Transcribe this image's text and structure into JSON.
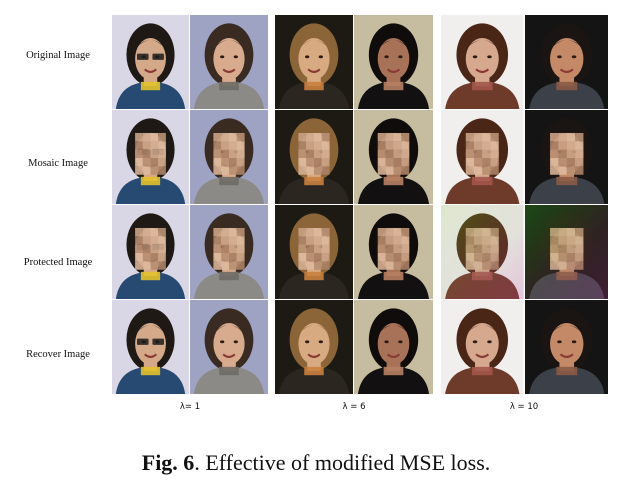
{
  "rows": [
    {
      "label": "Original Image",
      "variant": "original"
    },
    {
      "label": "Mosaic Image",
      "variant": "mosaic"
    },
    {
      "label": "Protected Image",
      "variant": "protected"
    },
    {
      "label": "Recover Image",
      "variant": "recover"
    }
  ],
  "groups": [
    {
      "lambda_label": "λ= 1",
      "faces": [
        {
          "bg": "#d9d7e6",
          "skin": "#d4a98a",
          "hair": "#1f1915",
          "cloth": "#274a73",
          "accent": "#e3c12a",
          "glasses": true
        },
        {
          "bg": "#9ea3c4",
          "skin": "#d9ab8e",
          "hair": "#3a2b22",
          "cloth": "#8c8a86",
          "accent": "#6b6a66",
          "glasses": false
        }
      ]
    },
    {
      "lambda_label": "λ = 6",
      "faces": [
        {
          "bg": "#1d1a14",
          "skin": "#d7aa82",
          "hair": "#8b6437",
          "cloth": "#2b2620",
          "accent": "#c9813e",
          "glasses": false
        },
        {
          "bg": "#c6bda0",
          "skin": "#a77257",
          "hair": "#0f0c0b",
          "cloth": "#121010",
          "accent": "#b77f63",
          "glasses": false
        }
      ]
    },
    {
      "lambda_label": "λ = 10",
      "faces": [
        {
          "bg": "#f1eeee",
          "skin": "#d6a98f",
          "hair": "#4a2617",
          "cloth": "#6e3a2a",
          "accent": "#a3574a",
          "glasses": false
        },
        {
          "bg": "#141414",
          "skin": "#c48a68",
          "hair": "#1a1412",
          "cloth": "#3c4049",
          "accent": "#8a5a45",
          "glasses": false
        }
      ]
    }
  ],
  "caption": {
    "fig": "Fig. 6",
    "text": ". Effective of modified MSE loss."
  }
}
